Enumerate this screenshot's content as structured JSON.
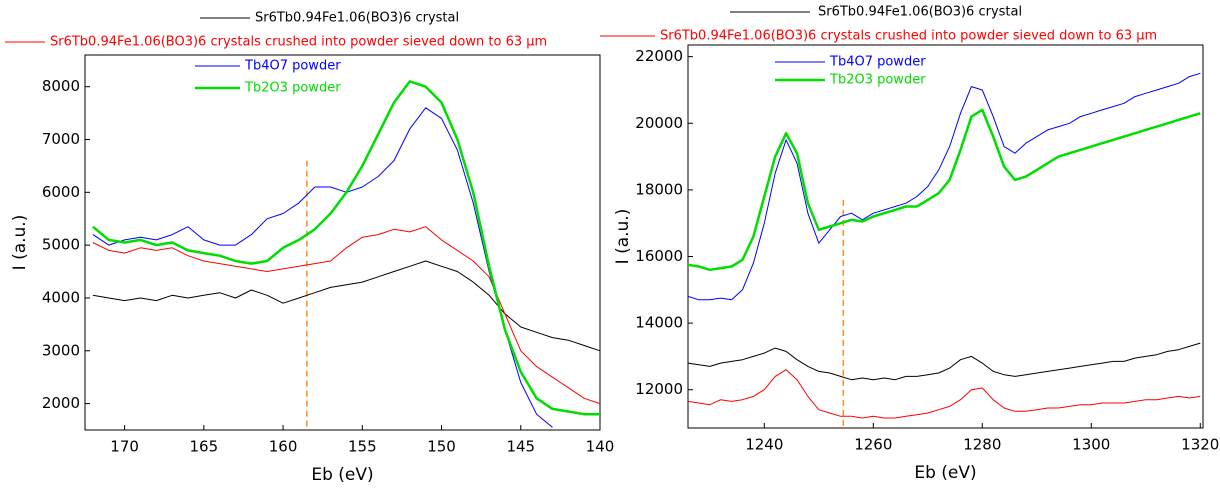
{
  "chart_data": [
    {
      "type": "line",
      "xlabel": "Eb (eV)",
      "ylabel": "I (a.u.)",
      "xlim": [
        172.5,
        140
      ],
      "xticks": [
        170,
        165,
        160,
        155,
        150,
        145,
        140
      ],
      "ylim": [
        1500,
        8600
      ],
      "yticks": [
        2000,
        3000,
        4000,
        5000,
        6000,
        7000,
        8000
      ],
      "vline": {
        "x": 158.5,
        "top": 6600,
        "color": "#ff8c1a"
      },
      "x": [
        172,
        171,
        170,
        169,
        168,
        167,
        166,
        165,
        164,
        163,
        162,
        161,
        160,
        159,
        158,
        157,
        156,
        155,
        154,
        153,
        152,
        151,
        150,
        149,
        148,
        147,
        146,
        145,
        144,
        143,
        142,
        141,
        140
      ],
      "series": [
        {
          "name": "Sr6Tb0.94Fe1.06(BO3)6 crystal",
          "color": "#000000",
          "line_width": 1,
          "values": [
            4050,
            4000,
            3950,
            4000,
            3950,
            4050,
            4000,
            4050,
            4100,
            4000,
            4150,
            4050,
            3900,
            4000,
            4100,
            4200,
            4250,
            4300,
            4400,
            4500,
            4600,
            4700,
            4600,
            4500,
            4300,
            4050,
            3700,
            3450,
            3350,
            3250,
            3200,
            3100,
            3000
          ]
        },
        {
          "name": "Sr6Tb0.94Fe1.06(BO3)6 crystals crushed into powder sieved down to 63 µm",
          "color": "#ff0000",
          "line_width": 1,
          "values": [
            5050,
            4900,
            4850,
            4950,
            4900,
            4950,
            4800,
            4700,
            4650,
            4600,
            4550,
            4500,
            4550,
            4600,
            4650,
            4700,
            4950,
            5150,
            5200,
            5300,
            5250,
            5350,
            5100,
            4900,
            4700,
            4400,
            3700,
            3000,
            2700,
            2500,
            2300,
            2100,
            2000
          ]
        },
        {
          "name": "Tb4O7 powder",
          "color": "#0000ff",
          "line_width": 1,
          "values": [
            5200,
            5000,
            5100,
            5150,
            5100,
            5200,
            5350,
            5100,
            5000,
            5000,
            5200,
            5500,
            5600,
            5800,
            6100,
            6100,
            6000,
            6100,
            6300,
            6600,
            7200,
            7600,
            7400,
            6800,
            5800,
            4500,
            3400,
            2400,
            1800,
            1550,
            null,
            null,
            null
          ]
        },
        {
          "name": "Tb2O3 powder",
          "color": "#00dd00",
          "line_width": 2.5,
          "values": [
            5350,
            5100,
            5050,
            5100,
            5000,
            5050,
            4900,
            4850,
            4800,
            4700,
            4650,
            4700,
            4950,
            5100,
            5300,
            5600,
            6000,
            6500,
            7100,
            7700,
            8100,
            8000,
            7700,
            7000,
            6000,
            4600,
            3400,
            2600,
            2100,
            1900,
            1850,
            1800,
            1800
          ]
        }
      ]
    },
    {
      "type": "line",
      "xlabel": "Eb (eV)",
      "ylabel": "I (a.u.)",
      "xlim": [
        1226,
        1320.5
      ],
      "xticks": [
        1240,
        1260,
        1280,
        1300,
        1320
      ],
      "ylim": [
        10850,
        22350
      ],
      "yticks": [
        12000,
        14000,
        16000,
        18000,
        20000,
        22000
      ],
      "vline": {
        "x": 1254.5,
        "top": 17700,
        "color": "#ff8c1a"
      },
      "x": [
        1226,
        1228,
        1230,
        1232,
        1234,
        1236,
        1238,
        1240,
        1242,
        1244,
        1246,
        1248,
        1250,
        1252,
        1254,
        1256,
        1258,
        1260,
        1262,
        1264,
        1266,
        1268,
        1270,
        1272,
        1274,
        1276,
        1278,
        1280,
        1282,
        1284,
        1286,
        1288,
        1290,
        1292,
        1294,
        1296,
        1298,
        1300,
        1302,
        1304,
        1306,
        1308,
        1310,
        1312,
        1314,
        1316,
        1318,
        1320
      ],
      "series": [
        {
          "name": "Sr6Tb0.94Fe1.06(BO3)6 crystal",
          "color": "#000000",
          "line_width": 1,
          "values": [
            12800,
            12750,
            12700,
            12800,
            12850,
            12900,
            13000,
            13100,
            13250,
            13150,
            12900,
            12700,
            12550,
            12500,
            12400,
            12300,
            12350,
            12300,
            12350,
            12300,
            12400,
            12400,
            12450,
            12500,
            12650,
            12900,
            13000,
            12800,
            12550,
            12450,
            12400,
            12450,
            12500,
            12550,
            12600,
            12650,
            12700,
            12750,
            12800,
            12850,
            12850,
            12950,
            13000,
            13050,
            13150,
            13200,
            13300,
            13400
          ]
        },
        {
          "name": "Sr6Tb0.94Fe1.06(BO3)6 crystals crushed into powder sieved down to 63 µm",
          "color": "#ff0000",
          "line_width": 1,
          "values": [
            11650,
            11600,
            11550,
            11700,
            11650,
            11700,
            11800,
            12000,
            12400,
            12600,
            12300,
            11800,
            11400,
            11300,
            11200,
            11200,
            11150,
            11200,
            11150,
            11150,
            11200,
            11250,
            11300,
            11400,
            11500,
            11700,
            12000,
            12050,
            11700,
            11450,
            11350,
            11350,
            11400,
            11450,
            11450,
            11500,
            11550,
            11550,
            11600,
            11600,
            11600,
            11650,
            11700,
            11700,
            11750,
            11800,
            11750,
            11800
          ]
        },
        {
          "name": "Tb4O7 powder",
          "color": "#0000ff",
          "line_width": 1,
          "values": [
            14800,
            14700,
            14700,
            14750,
            14700,
            15000,
            15800,
            17000,
            18500,
            19500,
            18800,
            17300,
            16400,
            16800,
            17200,
            17300,
            17100,
            17300,
            17400,
            17500,
            17600,
            17800,
            18100,
            18600,
            19300,
            20300,
            21100,
            21000,
            20200,
            19300,
            19100,
            19400,
            19600,
            19800,
            19900,
            20000,
            20200,
            20300,
            20400,
            20500,
            20600,
            20800,
            20900,
            21000,
            21100,
            21200,
            21400,
            21500
          ]
        },
        {
          "name": "Tb2O3 powder",
          "color": "#00dd00",
          "line_width": 2.5,
          "values": [
            15750,
            15700,
            15600,
            15650,
            15700,
            15900,
            16600,
            17800,
            19000,
            19700,
            19100,
            17600,
            16800,
            16900,
            17000,
            17100,
            17050,
            17200,
            17300,
            17400,
            17500,
            17500,
            17700,
            17900,
            18300,
            19200,
            20200,
            20400,
            19600,
            18700,
            18300,
            18400,
            18600,
            18800,
            19000,
            19100,
            19200,
            19300,
            19400,
            19500,
            19600,
            19700,
            19800,
            19900,
            20000,
            20100,
            20200,
            20300
          ]
        }
      ]
    }
  ]
}
